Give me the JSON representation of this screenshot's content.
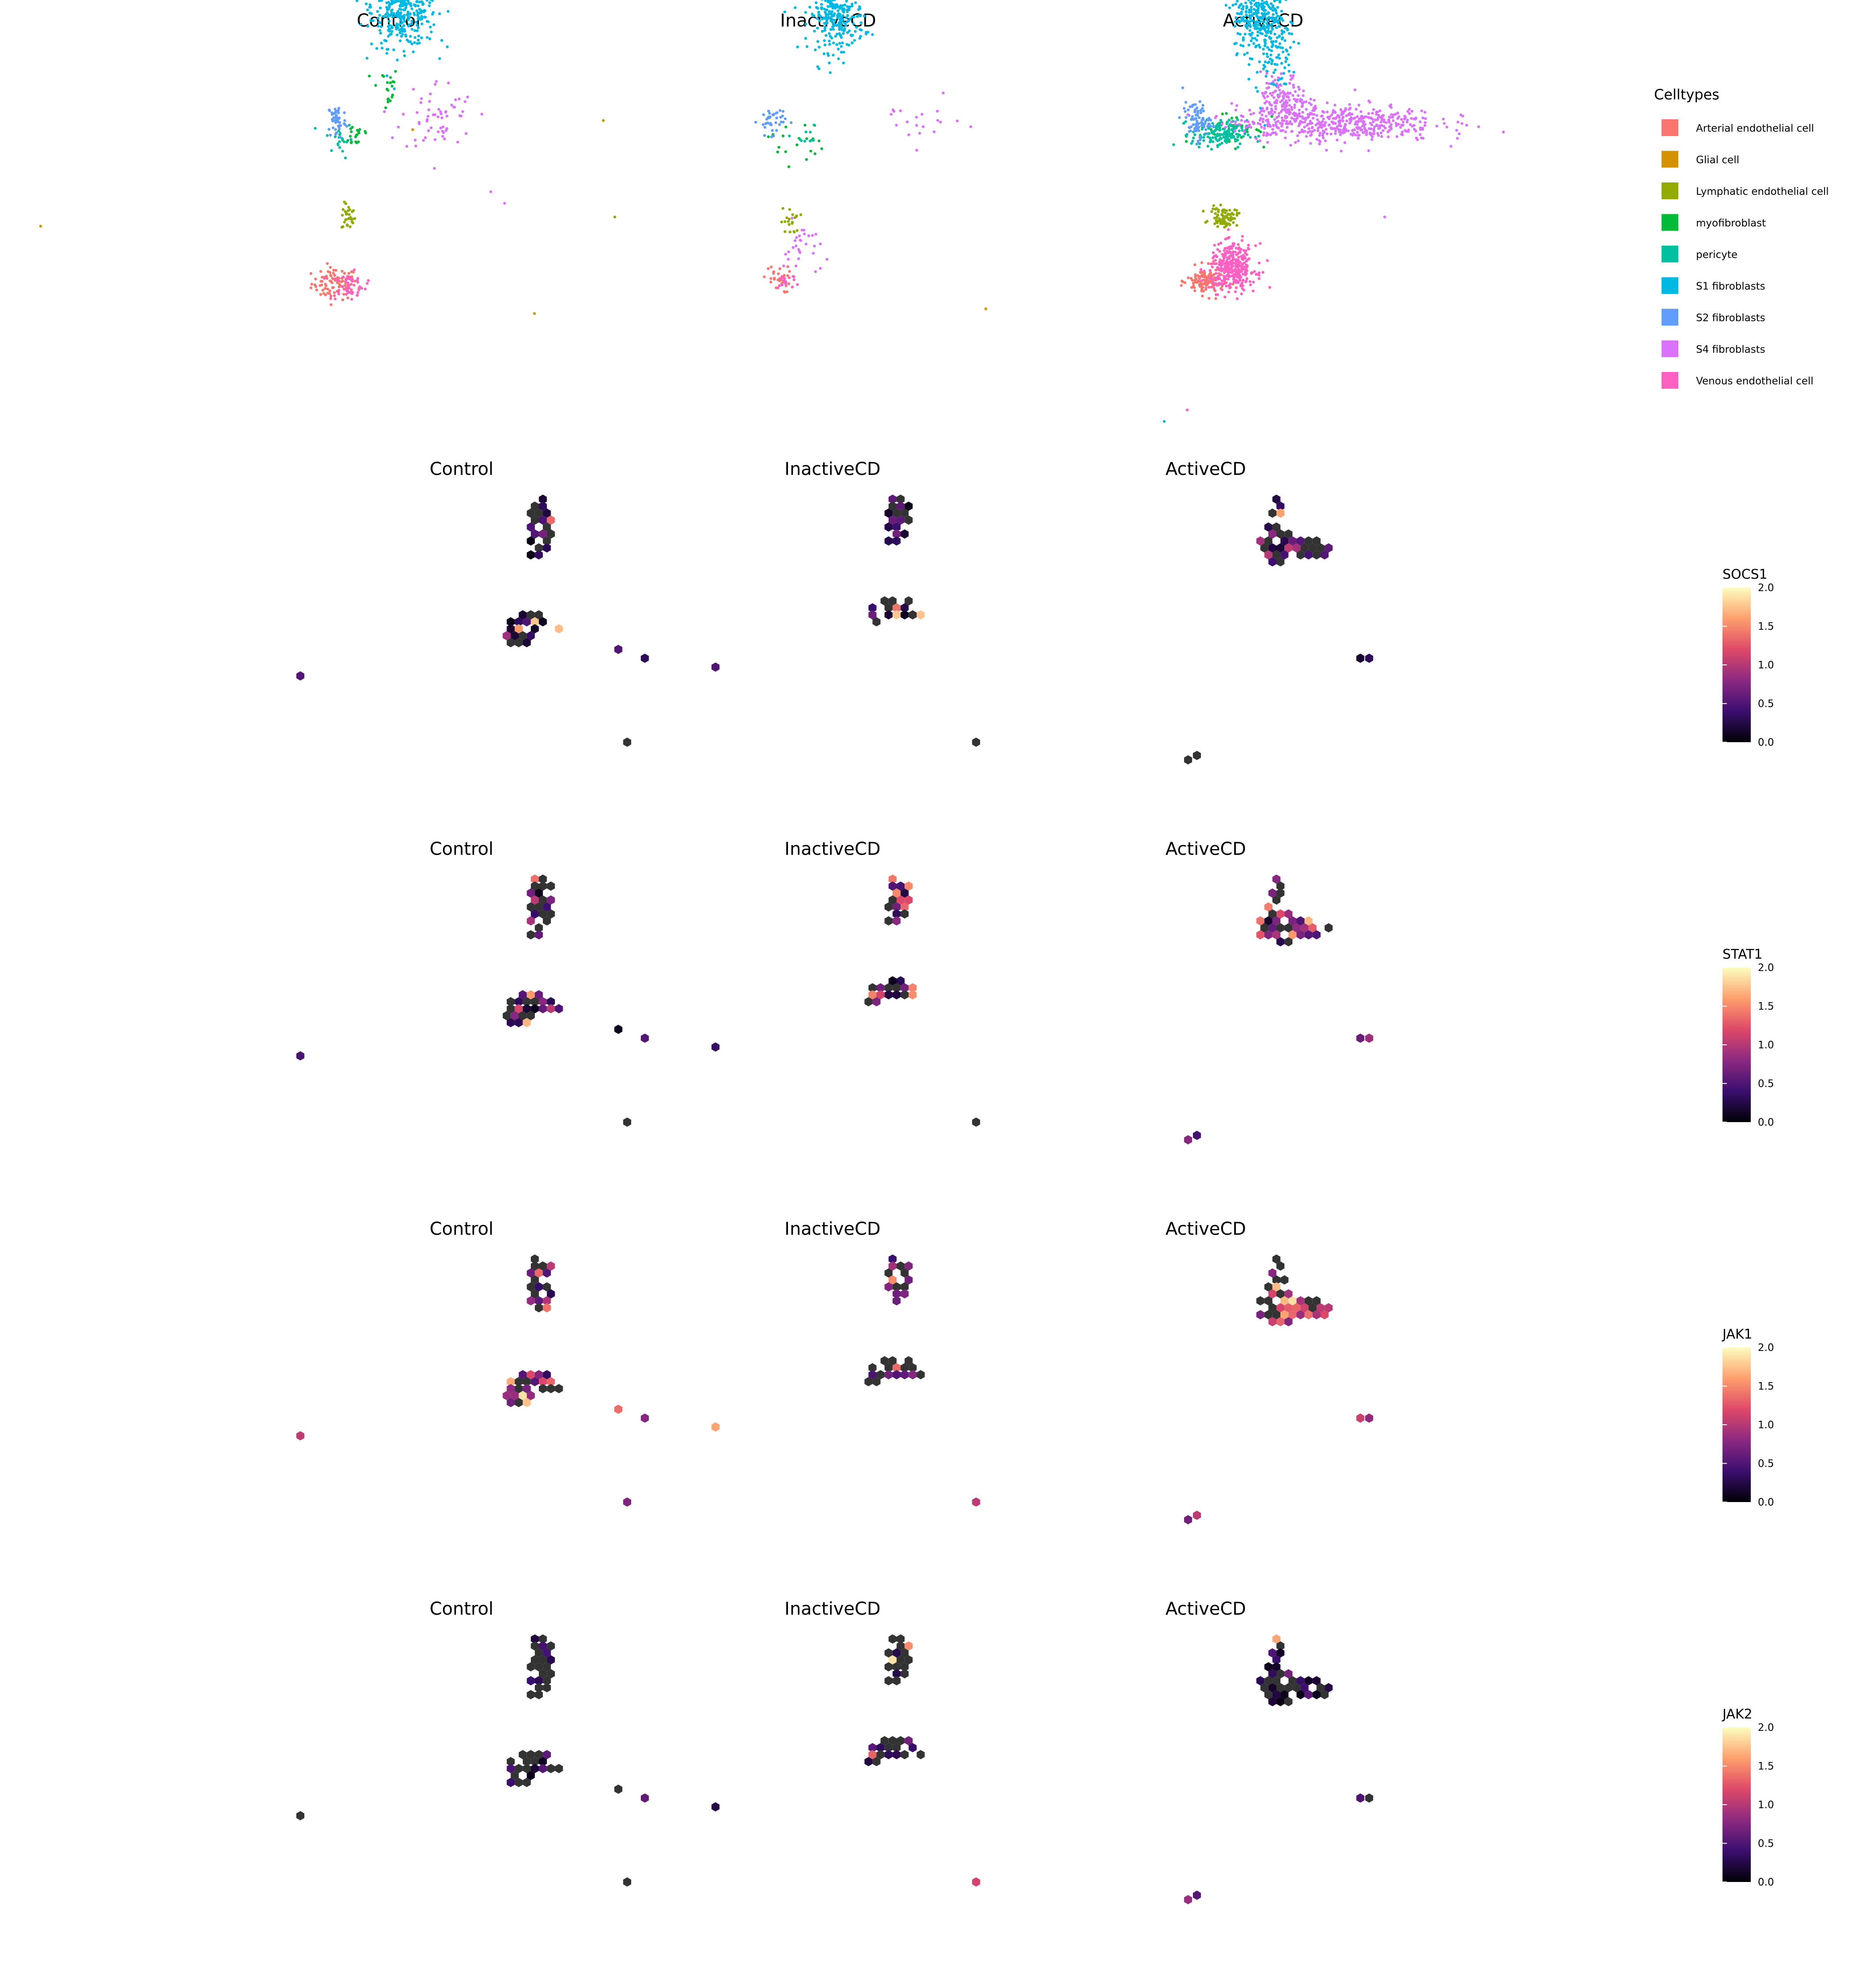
{
  "chart_data": [
    {
      "type": "scatter",
      "title": "Control",
      "panel_row": 1,
      "series": [
        {
          "name": "Arterial endothelial cell",
          "clusters": [
            [
              -0.62,
              -0.35,
              0.05,
              0.035,
              90
            ]
          ]
        },
        {
          "name": "Glial cell",
          "points": [
            [
              -1.9,
              -0.1
            ],
            [
              0.25,
              -0.48
            ],
            [
              0.55,
              0.36
            ],
            [
              -0.28,
              0.32
            ]
          ]
        },
        {
          "name": "Lymphatic endothelial cell",
          "clusters": [
            [
              -0.56,
              -0.06,
              0.015,
              0.03,
              30
            ]
          ],
          "points": [
            [
              0.6,
              -0.06
            ]
          ]
        },
        {
          "name": "myofibroblast",
          "clusters": [
            [
              -0.4,
              0.5,
              0.03,
              0.05,
              20
            ],
            [
              -0.52,
              0.3,
              0.03,
              0.03,
              20
            ]
          ]
        },
        {
          "name": "pericyte",
          "clusters": [
            [
              -0.6,
              0.28,
              0.03,
              0.04,
              20
            ]
          ]
        },
        {
          "name": "S1 fibroblasts",
          "clusters": [
            [
              -0.32,
              0.86,
              0.07,
              0.09,
              420
            ]
          ]
        },
        {
          "name": "S2 fibroblasts",
          "clusters": [
            [
              -0.61,
              0.36,
              0.02,
              0.04,
              50
            ]
          ]
        },
        {
          "name": "S4 fibroblasts",
          "clusters": [
            [
              -0.17,
              0.38,
              0.08,
              0.08,
              60
            ]
          ],
          "points": [
            [
              0.06,
              0.05
            ],
            [
              0.12,
              0.0
            ]
          ]
        },
        {
          "name": "Venous endothelial cell",
          "clusters": [
            [
              -0.56,
              -0.36,
              0.04,
              0.03,
              50
            ]
          ]
        }
      ]
    },
    {
      "type": "scatter",
      "title": "InactiveCD",
      "panel_row": 1,
      "series": [
        {
          "name": "Arterial endothelial cell",
          "clusters": [
            [
              -0.56,
              -0.33,
              0.03,
              0.03,
              30
            ]
          ]
        },
        {
          "name": "Glial cell",
          "points": [
            [
              0.35,
              -0.46
            ]
          ]
        },
        {
          "name": "Lymphatic endothelial cell",
          "clusters": [
            [
              -0.5,
              -0.08,
              0.02,
              0.03,
              20
            ]
          ]
        },
        {
          "name": "myofibroblast",
          "clusters": [
            [
              -0.48,
              0.27,
              0.06,
              0.05,
              20
            ]
          ]
        },
        {
          "name": "pericyte",
          "clusters": [
            [
              -0.44,
              0.28,
              0.03,
              0.03,
              10
            ]
          ]
        },
        {
          "name": "S1 fibroblasts",
          "clusters": [
            [
              -0.3,
              0.82,
              0.06,
              0.08,
              300
            ]
          ]
        },
        {
          "name": "S2 fibroblasts",
          "clusters": [
            [
              -0.58,
              0.36,
              0.03,
              0.03,
              40
            ]
          ]
        },
        {
          "name": "S4 fibroblasts",
          "clusters": [
            [
              -0.45,
              -0.2,
              0.04,
              0.06,
              30
            ],
            [
              0.05,
              0.35,
              0.1,
              0.05,
              20
            ]
          ]
        },
        {
          "name": "Venous endothelial cell",
          "clusters": [
            [
              -0.52,
              -0.34,
              0.03,
              0.02,
              15
            ]
          ]
        }
      ]
    },
    {
      "type": "scatter",
      "title": "ActiveCD",
      "panel_row": 1,
      "series": [
        {
          "name": "Arterial endothelial cell",
          "clusters": [
            [
              -0.52,
              -0.34,
              0.04,
              0.03,
              120
            ]
          ]
        },
        {
          "name": "Glial cell",
          "points": []
        },
        {
          "name": "Lymphatic endothelial cell",
          "clusters": [
            [
              -0.44,
              -0.06,
              0.03,
              0.02,
              80
            ]
          ]
        },
        {
          "name": "myofibroblast",
          "clusters": [
            [
              -0.4,
              0.33,
              0.08,
              0.04,
              40
            ]
          ]
        },
        {
          "name": "pericyte",
          "clusters": [
            [
              -0.46,
              0.3,
              0.06,
              0.03,
              160
            ]
          ]
        },
        {
          "name": "S1 fibroblasts",
          "clusters": [
            [
              -0.3,
              0.82,
              0.05,
              0.08,
              250
            ],
            [
              -0.22,
              0.7,
              0.04,
              0.12,
              150
            ]
          ],
          "points": [
            [
              -0.7,
              -0.95
            ]
          ]
        },
        {
          "name": "S2 fibroblasts",
          "clusters": [
            [
              -0.56,
              0.36,
              0.03,
              0.04,
              80
            ]
          ]
        },
        {
          "name": "S4 fibroblasts",
          "clusters": [
            [
              0.05,
              0.35,
              0.22,
              0.04,
              500
            ],
            [
              -0.18,
              0.44,
              0.05,
              0.06,
              150
            ]
          ],
          "points": [
            [
              0.26,
              -0.06
            ]
          ]
        },
        {
          "name": "Venous endothelial cell",
          "clusters": [
            [
              -0.4,
              -0.28,
              0.05,
              0.05,
              350
            ]
          ],
          "points": [
            [
              -0.6,
              -0.9
            ]
          ]
        }
      ]
    }
  ],
  "legend": {
    "title": "Celltypes",
    "placement": "right",
    "items": [
      {
        "label": "Arterial endothelial cell",
        "color": "#F8766D"
      },
      {
        "label": "Glial cell",
        "color": "#D39200"
      },
      {
        "label": "Lymphatic endothelial cell",
        "color": "#93AA00"
      },
      {
        "label": "myofibroblast",
        "color": "#00BA38"
      },
      {
        "label": "pericyte",
        "color": "#00C19F"
      },
      {
        "label": "S1 fibroblasts",
        "color": "#00B9E3"
      },
      {
        "label": "S2 fibroblasts",
        "color": "#619CFF"
      },
      {
        "label": "S4 fibroblasts",
        "color": "#DB72FB"
      },
      {
        "label": "Venous endothelial cell",
        "color": "#FF61C3"
      }
    ]
  },
  "hex_rows": [
    {
      "gene": "SOCS1",
      "colorbar": {
        "min": 0.0,
        "max": 2.0,
        "ticks": [
          "2.0",
          "1.5",
          "1.0",
          "0.5",
          "0.0"
        ]
      },
      "panels": [
        {
          "title": "Control",
          "base": 0.25,
          "hot": 0.06
        },
        {
          "title": "InactiveCD",
          "base": 0.3,
          "hot": 0.12
        },
        {
          "title": "ActiveCD",
          "base": 0.35,
          "hot": 0.05
        }
      ]
    },
    {
      "gene": "STAT1",
      "colorbar": {
        "min": 0.0,
        "max": 2.0,
        "ticks": [
          "2.0",
          "1.5",
          "1.0",
          "0.5",
          "0.0"
        ]
      },
      "panels": [
        {
          "title": "Control",
          "base": 0.5,
          "hot": 0.1
        },
        {
          "title": "InactiveCD",
          "base": 0.45,
          "hot": 0.2
        },
        {
          "title": "ActiveCD",
          "base": 0.6,
          "hot": 0.2
        }
      ]
    },
    {
      "gene": "JAK1",
      "colorbar": {
        "min": 0.0,
        "max": 2.0,
        "ticks": [
          "2.0",
          "1.5",
          "1.0",
          "0.5",
          "0.0"
        ]
      },
      "panels": [
        {
          "title": "Control",
          "base": 0.7,
          "hot": 0.12
        },
        {
          "title": "InactiveCD",
          "base": 0.7,
          "hot": 0.12
        },
        {
          "title": "ActiveCD",
          "base": 0.9,
          "hot": 0.2
        }
      ]
    },
    {
      "gene": "JAK2",
      "colorbar": {
        "min": 0.0,
        "max": 2.0,
        "ticks": [
          "2.0",
          "1.5",
          "1.0",
          "0.5",
          "0.0"
        ]
      },
      "panels": [
        {
          "title": "Control",
          "base": 0.1,
          "hot": 0.03
        },
        {
          "title": "InactiveCD",
          "base": 0.15,
          "hot": 0.05
        },
        {
          "title": "ActiveCD",
          "base": 0.15,
          "hot": 0.02
        }
      ]
    }
  ],
  "colors": {
    "na_hex": "#333333",
    "magma": [
      "#000004",
      "#3B0F70",
      "#8C2981",
      "#DE4968",
      "#FE9F6D",
      "#FCFDBF"
    ]
  }
}
